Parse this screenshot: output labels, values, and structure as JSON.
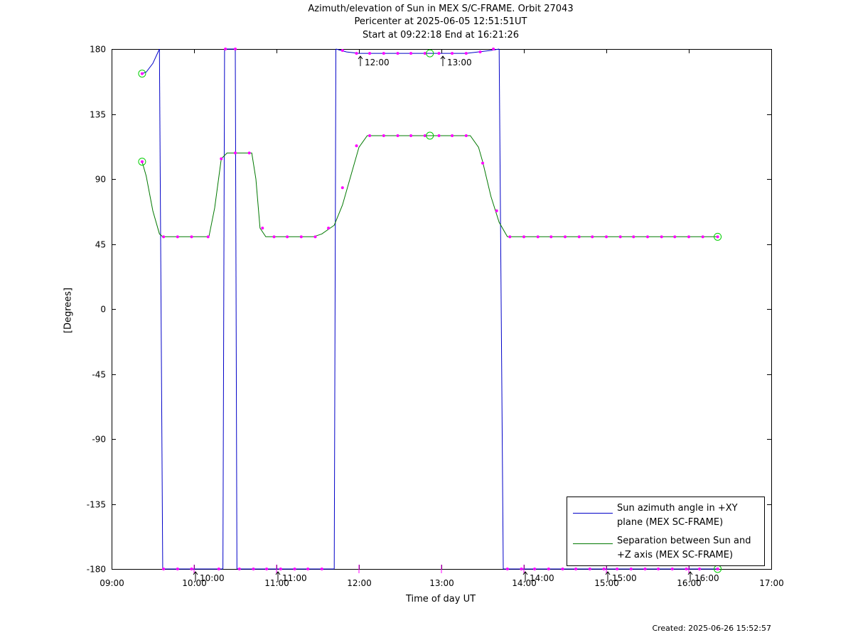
{
  "header": {
    "title": "Azimuth/elevation of Sun in MEX S/C-FRAME.  Orbit 27043",
    "pericenter": "Pericenter at 2025-06-05 12:51:51UT",
    "start_end": "Start at 09:22:18 End at 16:21:26"
  },
  "footer": {
    "created": "Created: 2025-06-26 15:52:57"
  },
  "colors": {
    "azimuth": "#0000c8",
    "separation": "#007800",
    "markers": "#ff00ff",
    "circles": "#00cc00"
  },
  "chart_data": {
    "type": "line",
    "title": "Azimuth/elevation of Sun in MEX S/C-FRAME.  Orbit 27043",
    "xlabel": "Time of day UT",
    "ylabel": "[Degrees]",
    "xlim": [
      9.0,
      17.0
    ],
    "ylim": [
      -180,
      180
    ],
    "grid": false,
    "legend_position": "bottom-right",
    "x_ticks": [
      9,
      10,
      11,
      12,
      13,
      14,
      15,
      16,
      17
    ],
    "x_tick_labels": [
      "09:00",
      "10:00",
      "11:00",
      "12:00",
      "13:00",
      "14:00",
      "15:00",
      "16:00",
      "17:00"
    ],
    "y_ticks": [
      180,
      135,
      90,
      45,
      0,
      -45,
      -90,
      -135,
      -180
    ],
    "y_tick_labels": [
      "180",
      "135",
      "90",
      "45",
      "0",
      "-45",
      "-90",
      "-135",
      "-180"
    ],
    "hour_markers": [
      {
        "time": 10.0,
        "label": "10:00",
        "y": -180
      },
      {
        "time": 11.0,
        "label": "11:00",
        "y": -180
      },
      {
        "time": 12.0,
        "label": "12:00",
        "y": 177
      },
      {
        "time": 13.0,
        "label": "13:00",
        "y": 177
      },
      {
        "time": 14.0,
        "label": "14:00",
        "y": -180
      },
      {
        "time": 15.0,
        "label": "15:00",
        "y": -180
      },
      {
        "time": 16.0,
        "label": "16:00",
        "y": -180
      }
    ],
    "series": [
      {
        "name": "Sun azimuth angle in +XY plane (MEX SC-FRAME)",
        "segments": [
          [
            [
              9.37,
              163
            ],
            [
              9.42,
              164
            ],
            [
              9.5,
              170
            ],
            [
              9.58,
              180
            ]
          ],
          [
            [
              9.62,
              -180
            ],
            [
              10.2,
              -180
            ],
            [
              10.35,
              -180
            ]
          ],
          [
            [
              10.37,
              180
            ],
            [
              10.5,
              180
            ]
          ],
          [
            [
              10.52,
              -180
            ],
            [
              11.0,
              -180
            ],
            [
              11.7,
              -180
            ]
          ],
          [
            [
              11.72,
              180
            ],
            [
              11.85,
              178
            ],
            [
              12.0,
              177
            ],
            [
              12.5,
              177
            ],
            [
              12.85,
              177
            ],
            [
              13.3,
              177
            ],
            [
              13.6,
              179
            ],
            [
              13.7,
              180
            ]
          ],
          [
            [
              13.75,
              -180
            ],
            [
              15.0,
              -180
            ],
            [
              16.35,
              -180
            ]
          ]
        ]
      },
      {
        "name": "Separation between Sun and +Z axis (MEX SC-FRAME)",
        "points": [
          [
            9.37,
            102
          ],
          [
            9.42,
            92
          ],
          [
            9.5,
            68
          ],
          [
            9.58,
            52
          ],
          [
            9.62,
            50
          ],
          [
            10.0,
            50
          ],
          [
            10.18,
            50
          ],
          [
            10.25,
            70
          ],
          [
            10.33,
            104
          ],
          [
            10.4,
            108
          ],
          [
            10.7,
            108
          ],
          [
            10.75,
            90
          ],
          [
            10.8,
            56
          ],
          [
            10.87,
            50
          ],
          [
            11.0,
            50
          ],
          [
            11.45,
            50
          ],
          [
            11.55,
            52
          ],
          [
            11.7,
            58
          ],
          [
            11.8,
            72
          ],
          [
            11.9,
            92
          ],
          [
            12.0,
            112
          ],
          [
            12.1,
            120
          ],
          [
            12.5,
            120
          ],
          [
            12.85,
            120
          ],
          [
            13.35,
            120
          ],
          [
            13.45,
            112
          ],
          [
            13.5,
            102
          ],
          [
            13.6,
            78
          ],
          [
            13.7,
            60
          ],
          [
            13.8,
            50
          ],
          [
            14.0,
            50
          ],
          [
            15.0,
            50
          ],
          [
            16.35,
            50
          ]
        ]
      }
    ],
    "magenta_markers": {
      "azimuth": [
        [
          9.37,
          163
        ],
        [
          9.63,
          -180
        ],
        [
          9.8,
          -180
        ],
        [
          9.97,
          -180
        ],
        [
          10.3,
          -180
        ],
        [
          10.38,
          180
        ],
        [
          10.5,
          180
        ],
        [
          10.55,
          -180
        ],
        [
          10.72,
          -180
        ],
        [
          10.88,
          -180
        ],
        [
          11.05,
          -180
        ],
        [
          11.22,
          -180
        ],
        [
          11.38,
          -180
        ],
        [
          11.55,
          -180
        ],
        [
          11.8,
          179
        ],
        [
          11.97,
          177
        ],
        [
          12.13,
          177
        ],
        [
          12.3,
          177
        ],
        [
          12.47,
          177
        ],
        [
          12.63,
          177
        ],
        [
          12.8,
          177
        ],
        [
          12.97,
          177
        ],
        [
          13.13,
          177
        ],
        [
          13.3,
          177
        ],
        [
          13.47,
          178
        ],
        [
          13.63,
          180
        ],
        [
          13.8,
          -180
        ],
        [
          13.97,
          -180
        ],
        [
          14.13,
          -180
        ],
        [
          14.3,
          -180
        ],
        [
          14.47,
          -180
        ],
        [
          14.63,
          -180
        ],
        [
          14.8,
          -180
        ],
        [
          14.97,
          -180
        ],
        [
          15.13,
          -180
        ],
        [
          15.3,
          -180
        ],
        [
          15.47,
          -180
        ],
        [
          15.63,
          -180
        ],
        [
          15.8,
          -180
        ],
        [
          15.97,
          -180
        ],
        [
          16.13,
          -180
        ],
        [
          16.35,
          -180
        ]
      ],
      "separation": [
        [
          9.37,
          102
        ],
        [
          9.63,
          50
        ],
        [
          9.8,
          50
        ],
        [
          9.97,
          50
        ],
        [
          10.17,
          50
        ],
        [
          10.33,
          104
        ],
        [
          10.5,
          108
        ],
        [
          10.67,
          108
        ],
        [
          10.83,
          56
        ],
        [
          10.97,
          50
        ],
        [
          11.13,
          50
        ],
        [
          11.3,
          50
        ],
        [
          11.47,
          50
        ],
        [
          11.63,
          56
        ],
        [
          11.8,
          84
        ],
        [
          11.97,
          113
        ],
        [
          12.13,
          120
        ],
        [
          12.3,
          120
        ],
        [
          12.47,
          120
        ],
        [
          12.63,
          120
        ],
        [
          12.8,
          120
        ],
        [
          12.97,
          120
        ],
        [
          13.13,
          120
        ],
        [
          13.3,
          120
        ],
        [
          13.5,
          101
        ],
        [
          13.67,
          68
        ],
        [
          13.83,
          50
        ],
        [
          14.0,
          50
        ],
        [
          14.17,
          50
        ],
        [
          14.33,
          50
        ],
        [
          14.5,
          50
        ],
        [
          14.67,
          50
        ],
        [
          14.83,
          50
        ],
        [
          15.0,
          50
        ],
        [
          15.17,
          50
        ],
        [
          15.33,
          50
        ],
        [
          15.5,
          50
        ],
        [
          15.67,
          50
        ],
        [
          15.83,
          50
        ],
        [
          16.0,
          50
        ],
        [
          16.17,
          50
        ],
        [
          16.35,
          50
        ]
      ]
    },
    "circle_markers": [
      [
        9.37,
        163
      ],
      [
        9.37,
        102
      ],
      [
        12.86,
        177
      ],
      [
        12.86,
        120
      ],
      [
        16.35,
        50
      ],
      [
        16.35,
        -180
      ]
    ]
  },
  "legend": {
    "azimuth_line1": "Sun azimuth angle in +XY",
    "azimuth_line2": "plane (MEX SC-FRAME)",
    "separation_line1": "Separation between Sun and",
    "separation_line2": "+Z axis (MEX SC-FRAME)"
  }
}
